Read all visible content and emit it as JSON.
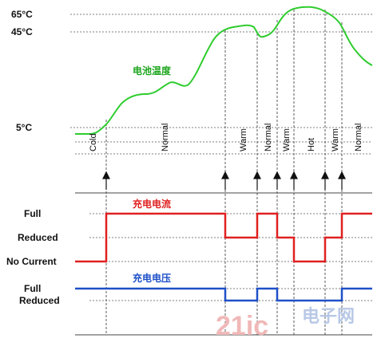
{
  "temperature_labels": {
    "t65": "65°C",
    "t45": "45°C",
    "t5": "5°C"
  },
  "temperature_curve_label": "电池温度",
  "zones": [
    "Cold",
    "Normal",
    "Warm",
    "Normal",
    "Warm",
    "Hot",
    "Warm",
    "Normal"
  ],
  "current_section": {
    "title": "充电电流",
    "levels": [
      "Full",
      "Reduced",
      "No Current"
    ]
  },
  "voltage_section": {
    "title": "充电电压",
    "levels": [
      "Full",
      "Reduced"
    ]
  },
  "colors": {
    "temperature": "#2ecc2e",
    "current": "#e02020",
    "voltage": "#1e50c8"
  },
  "watermark": {
    "brand": "21ic",
    "chinese": "电子网"
  }
}
